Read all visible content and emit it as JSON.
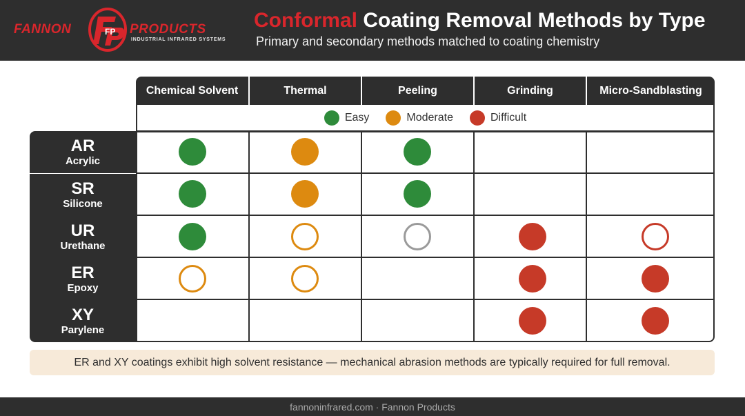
{
  "header": {
    "logo": {
      "word_left": "FANNON",
      "word_right": "PRODUCTS",
      "tagline": "INDUSTRIAL INFRARED SYSTEMS",
      "mark_letters": "FP"
    },
    "title_accent": "Conformal",
    "title_rest": "Coating Removal Methods by Type",
    "subtitle": "Primary and secondary methods matched to coating chemistry"
  },
  "table": {
    "columns": [
      "Chemical Solvent",
      "Thermal",
      "Peeling",
      "Grinding",
      "Micro-Sandblasting"
    ],
    "legend": [
      {
        "label": "Easy",
        "color": "#2e8b3a"
      },
      {
        "label": "Moderate",
        "color": "#dd8a10"
      },
      {
        "label": "Difficult",
        "color": "#c63a28"
      }
    ],
    "rows": [
      {
        "abbr": "AR",
        "name": "Acrylic",
        "cells": [
          {
            "level": "easy",
            "style": "filled"
          },
          {
            "level": "moderate",
            "style": "filled"
          },
          {
            "level": "easy",
            "style": "filled"
          },
          null,
          null
        ]
      },
      {
        "abbr": "SR",
        "name": "Silicone",
        "cells": [
          {
            "level": "easy",
            "style": "filled"
          },
          {
            "level": "moderate",
            "style": "filled"
          },
          {
            "level": "easy",
            "style": "filled"
          },
          null,
          null
        ]
      },
      {
        "abbr": "UR",
        "name": "Urethane",
        "cells": [
          {
            "level": "easy",
            "style": "filled"
          },
          {
            "level": "moderate",
            "style": "outline"
          },
          {
            "level": "neutral",
            "style": "outline"
          },
          {
            "level": "difficult",
            "style": "filled"
          },
          {
            "level": "difficult",
            "style": "outline"
          }
        ]
      },
      {
        "abbr": "ER",
        "name": "Epoxy",
        "cells": [
          {
            "level": "moderate",
            "style": "outline"
          },
          {
            "level": "moderate",
            "style": "outline"
          },
          null,
          {
            "level": "difficult",
            "style": "filled"
          },
          {
            "level": "difficult",
            "style": "filled"
          }
        ]
      },
      {
        "abbr": "XY",
        "name": "Parylene",
        "cells": [
          null,
          null,
          null,
          {
            "level": "difficult",
            "style": "filled"
          },
          {
            "level": "difficult",
            "style": "filled"
          }
        ]
      }
    ]
  },
  "note": "ER and XY coatings exhibit high solvent resistance — mechanical abrasion methods are typically required for full removal.",
  "footer": "fannoninfrared.com · Fannon Products",
  "colors": {
    "dark": "#2e2e2e",
    "brand_red": "#d9262c",
    "note_bg": "#f7ead9"
  }
}
